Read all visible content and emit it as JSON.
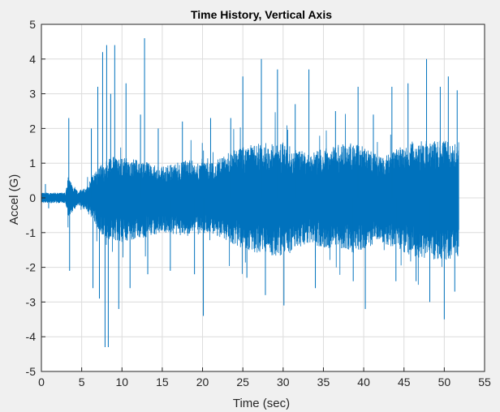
{
  "chart_data": {
    "type": "line",
    "title": "Time History,  Vertical Axis",
    "xlabel": "Time (sec)",
    "ylabel": "Accel (G)",
    "xlim": [
      0,
      55
    ],
    "ylim": [
      -5,
      5
    ],
    "xticks": [
      0,
      5,
      10,
      15,
      20,
      25,
      30,
      35,
      40,
      45,
      50,
      55
    ],
    "yticks": [
      -5,
      -4,
      -3,
      -2,
      -1,
      0,
      1,
      2,
      3,
      4,
      5
    ],
    "grid": true,
    "legend": "none",
    "series": [
      {
        "color": "#0072bd",
        "t_end": 51.8,
        "envelope": {
          "t": [
            0,
            3.0,
            3.3,
            4.5,
            5.5,
            6.5,
            7.5,
            9,
            12,
            15,
            18,
            21,
            24,
            27,
            30,
            33,
            36,
            39,
            42,
            45,
            48,
            50,
            51.8
          ],
          "upper": [
            0.15,
            0.15,
            0.6,
            0.2,
            0.3,
            0.7,
            1.0,
            1.2,
            1.1,
            0.9,
            1.1,
            1.0,
            1.4,
            1.6,
            1.6,
            1.3,
            1.5,
            1.6,
            1.2,
            1.5,
            1.7,
            1.7,
            1.6
          ],
          "lower": [
            -0.15,
            -0.15,
            -0.6,
            -0.2,
            -0.3,
            -0.7,
            -1.1,
            -1.3,
            -1.2,
            -1.0,
            -1.1,
            -1.0,
            -1.4,
            -1.6,
            -1.7,
            -1.3,
            -1.5,
            -1.6,
            -1.3,
            -1.6,
            -1.8,
            -1.8,
            -1.7
          ]
        },
        "spikes": [
          {
            "t": 0.5,
            "y": 0.4
          },
          {
            "t": 0.9,
            "y": -0.3
          },
          {
            "t": 3.4,
            "y": 2.3
          },
          {
            "t": 3.5,
            "y": -2.1
          },
          {
            "t": 6.2,
            "y": 2.0
          },
          {
            "t": 6.4,
            "y": -2.6
          },
          {
            "t": 7.0,
            "y": 3.2
          },
          {
            "t": 7.2,
            "y": -2.9
          },
          {
            "t": 7.6,
            "y": 4.2
          },
          {
            "t": 7.9,
            "y": -4.3
          },
          {
            "t": 8.1,
            "y": 4.4
          },
          {
            "t": 8.3,
            "y": -4.3
          },
          {
            "t": 8.6,
            "y": 3.0
          },
          {
            "t": 9.1,
            "y": 4.4
          },
          {
            "t": 9.6,
            "y": -3.2
          },
          {
            "t": 10.5,
            "y": 3.3
          },
          {
            "t": 11.0,
            "y": -2.6
          },
          {
            "t": 12.3,
            "y": 2.4
          },
          {
            "t": 12.8,
            "y": 4.6
          },
          {
            "t": 13.2,
            "y": -2.2
          },
          {
            "t": 14.5,
            "y": 2.0
          },
          {
            "t": 16.0,
            "y": -2.1
          },
          {
            "t": 17.5,
            "y": 2.2
          },
          {
            "t": 19.0,
            "y": -2.2
          },
          {
            "t": 20.1,
            "y": -3.4
          },
          {
            "t": 21.0,
            "y": 2.3
          },
          {
            "t": 23.5,
            "y": 2.3
          },
          {
            "t": 25.0,
            "y": 3.5
          },
          {
            "t": 25.5,
            "y": -2.3
          },
          {
            "t": 27.3,
            "y": 4.0
          },
          {
            "t": 27.8,
            "y": -2.8
          },
          {
            "t": 29.3,
            "y": 3.7
          },
          {
            "t": 30.1,
            "y": -3.1
          },
          {
            "t": 31.5,
            "y": 2.7
          },
          {
            "t": 33.2,
            "y": 3.7
          },
          {
            "t": 34.0,
            "y": -2.6
          },
          {
            "t": 36.5,
            "y": 2.5
          },
          {
            "t": 38.7,
            "y": -2.4
          },
          {
            "t": 39.3,
            "y": 3.2
          },
          {
            "t": 40.2,
            "y": -3.2
          },
          {
            "t": 41.2,
            "y": 2.4
          },
          {
            "t": 43.5,
            "y": 3.2
          },
          {
            "t": 44.0,
            "y": -2.4
          },
          {
            "t": 45.5,
            "y": 3.3
          },
          {
            "t": 46.5,
            "y": -2.4
          },
          {
            "t": 47.8,
            "y": 4.0
          },
          {
            "t": 48.2,
            "y": -3.0
          },
          {
            "t": 49.5,
            "y": 3.2
          },
          {
            "t": 50.0,
            "y": -3.5
          },
          {
            "t": 50.5,
            "y": 3.5
          },
          {
            "t": 51.3,
            "y": -2.7
          },
          {
            "t": 51.6,
            "y": 3.1
          }
        ]
      }
    ]
  }
}
